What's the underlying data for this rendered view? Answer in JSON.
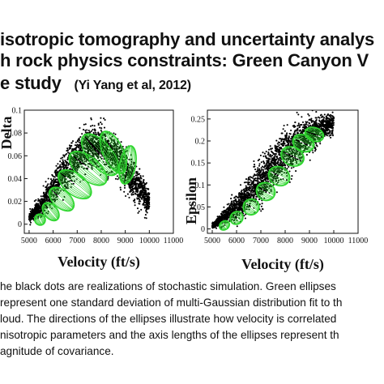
{
  "slide": {
    "title_line1": "isotropic tomography and uncertainty analys",
    "title_line2": "h rock physics constraints:  Green Canyon V",
    "title_line3": "e study",
    "citation": "(Yi Yang et al, 2012)"
  },
  "caption_lines": [
    "he black dots are realizations of stochastic simulation. Green ellipses",
    "represent one standard deviation of multi-Gaussian distribution fit to th",
    "loud. The directions of the ellipses illustrate how velocity is correlated",
    "nisotropic parameters and the axis lengths of the ellipses represent th",
    "agnitude of covariance."
  ],
  "colors": {
    "points": "#000000",
    "ellipses": "#2fd62f",
    "frame": "#111111"
  },
  "chart_data": [
    {
      "type": "scatter",
      "xlabel": "Velocity (ft/s)",
      "ylabel": "Delta",
      "xlim": [
        4800,
        11000
      ],
      "ylim": [
        -0.008,
        0.1
      ],
      "xticks": [
        5000,
        6000,
        7000,
        8000,
        9000,
        10000,
        11000
      ],
      "xtick_labels": [
        "5000",
        "6000",
        "7000",
        "8000",
        "9000",
        "10000",
        "11000"
      ],
      "yticks": [
        0,
        0.02,
        0.04,
        0.06,
        0.08,
        0.1
      ],
      "ytick_labels": [
        "0",
        "0.02",
        "0.04",
        "0.06",
        "0.08",
        "0.1"
      ],
      "series": [
        {
          "type": "point-cloud",
          "envelope_x": [
            5000,
            5500,
            6000,
            6500,
            7000,
            7500,
            8000,
            8500,
            9000,
            9500,
            10000
          ],
          "envelope_lower": [
            0,
            0.003,
            0.012,
            0.025,
            0.036,
            0.044,
            0.045,
            0.038,
            0.025,
            0.012,
            0.004
          ],
          "envelope_upper": [
            0.012,
            0.028,
            0.05,
            0.068,
            0.082,
            0.09,
            0.092,
            0.085,
            0.072,
            0.055,
            0.035
          ],
          "count": 2600
        },
        {
          "type": "ellipses",
          "centers": [
            [
              5450,
              0.004
            ],
            [
              5900,
              0.011
            ],
            [
              6350,
              0.022
            ],
            [
              6900,
              0.035
            ],
            [
              7450,
              0.049
            ],
            [
              7950,
              0.061
            ],
            [
              8500,
              0.063
            ],
            [
              9100,
              0.052
            ]
          ],
          "semi_axes_x": [
            220,
            280,
            360,
            430,
            470,
            500,
            420,
            330
          ],
          "semi_axes_y": [
            0.005,
            0.009,
            0.013,
            0.017,
            0.02,
            0.022,
            0.02,
            0.017
          ],
          "rotations_deg": [
            -30,
            -40,
            -48,
            -52,
            -50,
            -40,
            -25,
            10
          ]
        }
      ]
    },
    {
      "type": "scatter",
      "xlabel": "Velocity (ft/s)",
      "ylabel": "Epsilon",
      "xlim": [
        4800,
        11000
      ],
      "ylim": [
        -0.01,
        0.27
      ],
      "xticks": [
        5000,
        6000,
        7000,
        8000,
        9000,
        10000,
        11000
      ],
      "xtick_labels": [
        "5000",
        "6000",
        "7000",
        "8000",
        "9000",
        "10000",
        "11000"
      ],
      "yticks": [
        0,
        0.05,
        0.1,
        0.15,
        0.2,
        0.25
      ],
      "ytick_labels": [
        "0",
        "0.05",
        "0.1",
        "0.15",
        "0.2",
        "0.25"
      ],
      "series": [
        {
          "type": "point-cloud",
          "envelope_x": [
            5000,
            5500,
            6000,
            6500,
            7000,
            7500,
            8000,
            8500,
            9000,
            9500,
            10000
          ],
          "envelope_lower": [
            0,
            0.002,
            0.01,
            0.025,
            0.045,
            0.07,
            0.1,
            0.13,
            0.16,
            0.19,
            0.21
          ],
          "envelope_upper": [
            0.015,
            0.05,
            0.09,
            0.13,
            0.17,
            0.21,
            0.24,
            0.26,
            0.27,
            0.27,
            0.27
          ],
          "count": 2600
        },
        {
          "type": "ellipses",
          "centers": [
            [
              5500,
              0.008
            ],
            [
              6000,
              0.025
            ],
            [
              6600,
              0.05
            ],
            [
              7200,
              0.085
            ],
            [
              7750,
              0.12
            ],
            [
              8300,
              0.165
            ],
            [
              8750,
              0.195
            ],
            [
              9200,
              0.215
            ]
          ],
          "semi_axes_x": [
            220,
            280,
            330,
            360,
            380,
            380,
            340,
            280
          ],
          "semi_axes_y": [
            0.01,
            0.014,
            0.018,
            0.022,
            0.025,
            0.027,
            0.025,
            0.022
          ],
          "rotations_deg": [
            -35,
            -45,
            -52,
            -58,
            -62,
            -64,
            -66,
            -70
          ]
        }
      ]
    }
  ]
}
